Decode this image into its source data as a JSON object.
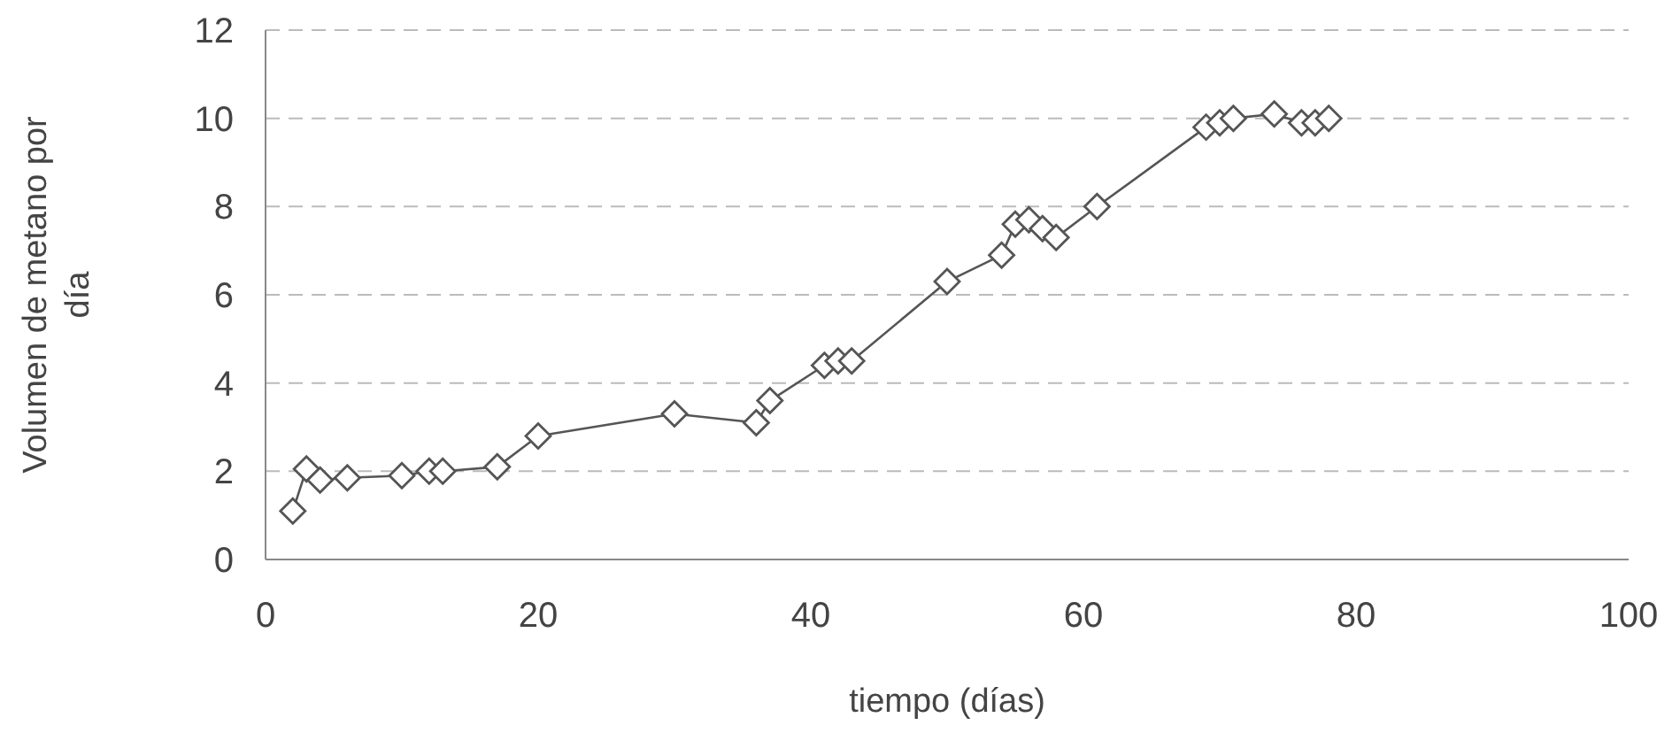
{
  "chart_data": {
    "type": "line",
    "xlabel": "tiempo (días)",
    "ylabel": "Volumen de metano por día",
    "xlim": [
      0,
      100
    ],
    "xticks": [
      0,
      20,
      40,
      60,
      80,
      100
    ],
    "ylim": [
      0,
      12
    ],
    "yticks": [
      0,
      2,
      4,
      6,
      8,
      10,
      12
    ],
    "grid": "y",
    "marker": "diamond",
    "line_style": "solid",
    "series": [
      {
        "color": "#555555",
        "x": [
          2,
          3,
          4,
          6,
          10,
          12,
          13,
          17,
          20,
          30,
          36,
          37,
          41,
          42,
          43,
          50,
          54,
          55,
          56,
          57,
          58,
          61,
          69,
          70,
          71,
          74,
          76,
          77,
          78
        ],
        "values": [
          1.1,
          2.05,
          1.8,
          1.85,
          1.9,
          2.0,
          2.0,
          2.1,
          2.8,
          3.3,
          3.1,
          3.6,
          4.4,
          4.5,
          4.5,
          6.3,
          6.9,
          7.6,
          7.7,
          7.5,
          7.3,
          8.0,
          9.8,
          9.9,
          10.0,
          10.1,
          9.9,
          9.9,
          10.0
        ]
      }
    ]
  }
}
